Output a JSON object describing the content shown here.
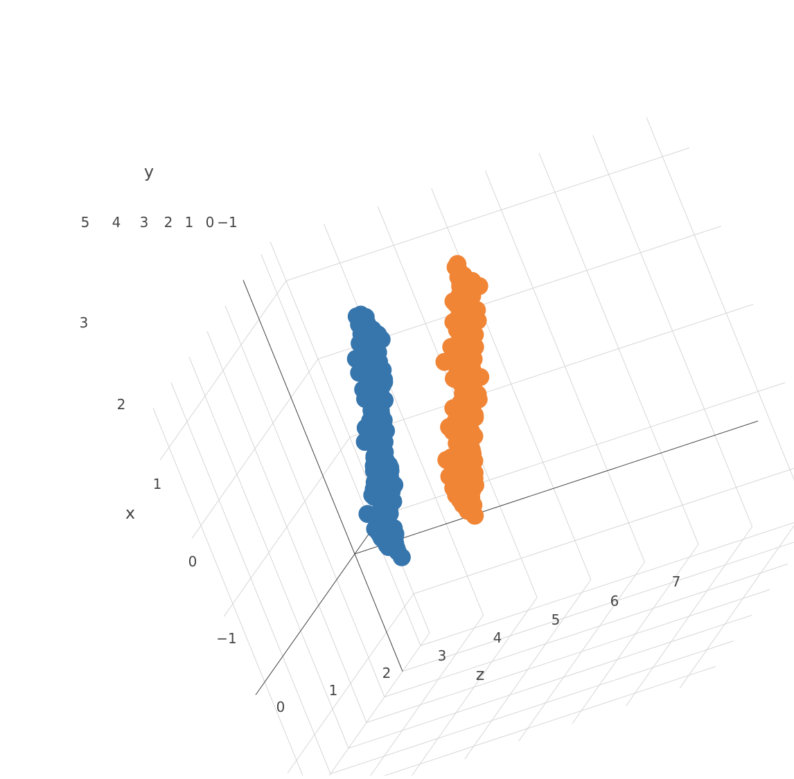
{
  "chart_data": {
    "type": "scatter",
    "subtype": "3d",
    "axes": {
      "x": {
        "title": "x",
        "ticks": [
          "−1",
          "0",
          "1",
          "2",
          "3"
        ],
        "range": [
          -1.5,
          3.5
        ]
      },
      "y": {
        "title": "y",
        "ticks": [
          "5",
          "4",
          "3",
          "2",
          "1",
          "0",
          "−1"
        ],
        "range": [
          -1.5,
          5.5
        ]
      },
      "z": {
        "title": "z",
        "ticks": [
          "0",
          "1",
          "2",
          "3",
          "4",
          "5",
          "6",
          "7"
        ],
        "range": [
          0,
          7.5
        ]
      }
    },
    "grid": true,
    "legend": "none",
    "series": [
      {
        "color": "#3776ad",
        "description": "point cloud starting near (x≈0, y≈0, z≈0.6) and rising to around (x≈3.3, y≈3.3, z≈3.3)",
        "start": [
          0.0,
          0.0,
          0.6
        ],
        "end": [
          3.3,
          3.3,
          3.3
        ]
      },
      {
        "color": "#f08536",
        "description": "point cloud starting near (x≈0.2, y≈0.2, z≈2.2) and rising to around (x≈3.6, y≈3.6, z≈5.4)",
        "start": [
          0.2,
          0.2,
          2.2
        ],
        "end": [
          3.6,
          3.6,
          5.4
        ]
      }
    ]
  }
}
